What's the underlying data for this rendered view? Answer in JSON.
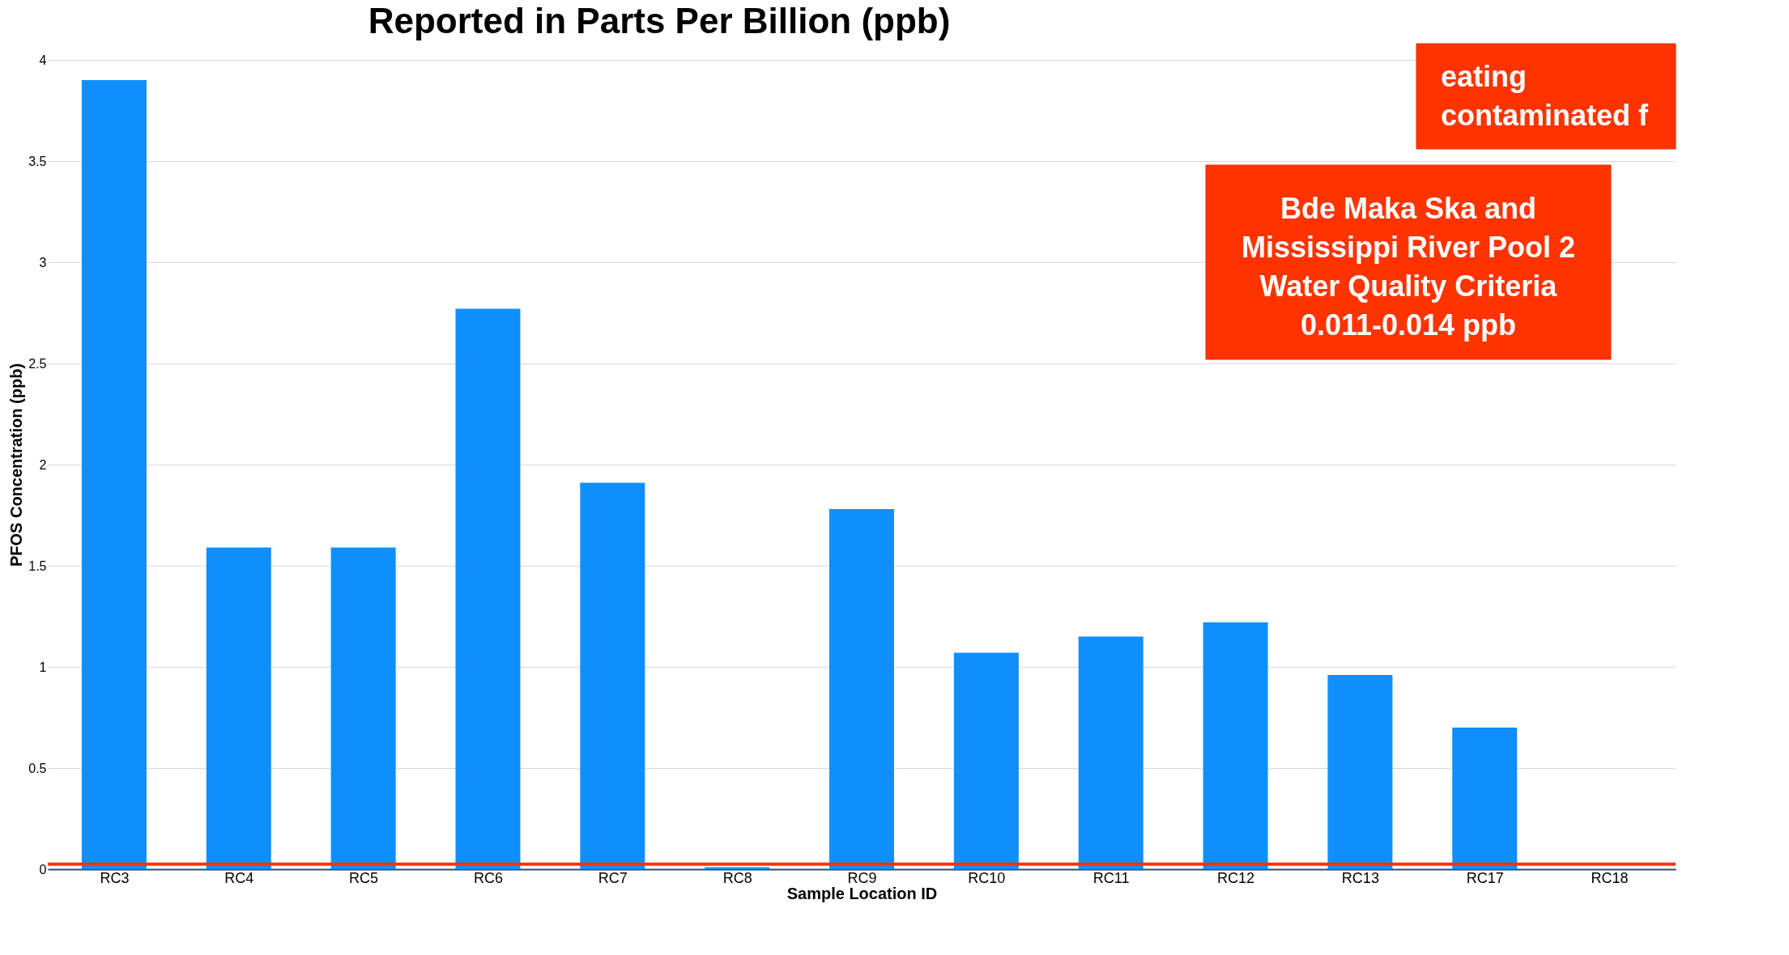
{
  "chart_data": {
    "type": "bar",
    "title": "Reported in Parts Per Billion (ppb)",
    "xlabel": "Sample Location ID",
    "ylabel": "PFOS Concentration (ppb)",
    "categories": [
      "RC3",
      "RC4",
      "RC5",
      "RC6",
      "RC7",
      "RC8",
      "RC9",
      "RC10",
      "RC11",
      "RC12",
      "RC13",
      "RC17",
      "RC18"
    ],
    "values": [
      3.9,
      1.59,
      1.59,
      2.77,
      1.91,
      0.01,
      1.78,
      1.07,
      1.15,
      1.22,
      0.96,
      0.7,
      0
    ],
    "color": "#0f8ffb",
    "ylim": [
      0,
      4
    ],
    "yticks": [
      0,
      0.5,
      1,
      1.5,
      2,
      2.5,
      3,
      3.5,
      4
    ],
    "grid": "y",
    "ref_lines": [
      {
        "axis": "y",
        "value": 0.025,
        "color": "#ff3300"
      }
    ],
    "annotations": [
      "eating contaminated f",
      "Bde Maka Ska and Mississippi River Pool 2 Water Quality Criteria 0.011-0.014 ppb"
    ]
  }
}
